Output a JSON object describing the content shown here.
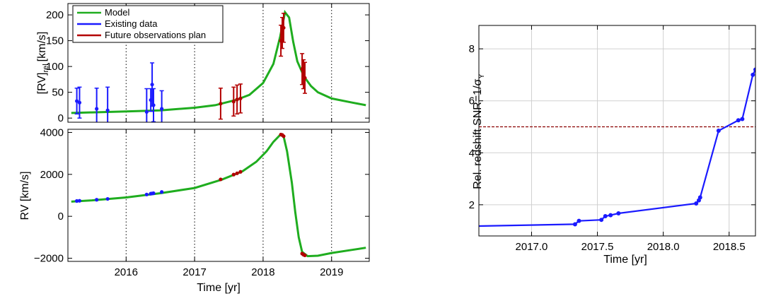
{
  "chart_data": [
    {
      "type": "line",
      "title": "",
      "xlabel": "",
      "ylabel": "[RV]rel [km/s]",
      "ylabel_main": "[RV]",
      "ylabel_sub": "rel",
      "ylabel_unit": "[km/s]",
      "xlim": [
        2015.15,
        2019.55
      ],
      "ylim": [
        -8,
        222
      ],
      "yticks": [
        0,
        50,
        100,
        150,
        200
      ],
      "ytick_labels": [
        "0",
        "50",
        "100",
        "150",
        "200"
      ],
      "xticks": [
        2016,
        2017,
        2018,
        2019
      ],
      "vlines": [
        2016,
        2017,
        2018,
        2019
      ],
      "legend": {
        "position": "top-left",
        "entries": [
          {
            "label": "Model",
            "color": "#1fad1f"
          },
          {
            "label": "Existing data",
            "color": "#1a1aff"
          },
          {
            "label": "Future observations plan",
            "color": "#b30000"
          }
        ]
      },
      "series": [
        {
          "name": "Model",
          "color": "#1fad1f",
          "x": [
            2015.2,
            2015.5,
            2016.0,
            2016.5,
            2017.0,
            2017.3,
            2017.6,
            2017.8,
            2018.0,
            2018.15,
            2018.25,
            2018.32,
            2018.38,
            2018.44,
            2018.5,
            2018.6,
            2018.7,
            2018.8,
            2019.0,
            2019.3,
            2019.5
          ],
          "y": [
            10,
            11,
            13,
            15,
            20,
            25,
            35,
            45,
            68,
            105,
            158,
            205,
            195,
            148,
            110,
            80,
            62,
            50,
            38,
            30,
            25
          ]
        },
        {
          "name": "Existing data",
          "color": "#1a1aff",
          "points": [
            {
              "x": 2015.28,
              "y": 33,
              "err": 25
            },
            {
              "x": 2015.32,
              "y": 30,
              "err": 30
            },
            {
              "x": 2015.57,
              "y": 18,
              "err": 40
            },
            {
              "x": 2015.73,
              "y": 15,
              "err": 45
            },
            {
              "x": 2016.3,
              "y": 12,
              "err": 45
            },
            {
              "x": 2016.36,
              "y": 35,
              "err": 22
            },
            {
              "x": 2016.38,
              "y": 65,
              "err": 42
            },
            {
              "x": 2016.4,
              "y": 25,
              "err": 32
            },
            {
              "x": 2016.52,
              "y": 18,
              "err": 35
            }
          ]
        },
        {
          "name": "Future observations plan",
          "color": "#b30000",
          "points": [
            {
              "x": 2017.38,
              "y": 28,
              "err": 30
            },
            {
              "x": 2017.57,
              "y": 32,
              "err": 28
            },
            {
              "x": 2017.62,
              "y": 36,
              "err": 28
            },
            {
              "x": 2017.67,
              "y": 38,
              "err": 28
            },
            {
              "x": 2018.26,
              "y": 150,
              "err": 30
            },
            {
              "x": 2018.28,
              "y": 165,
              "err": 30
            },
            {
              "x": 2018.3,
              "y": 175,
              "err": 28
            },
            {
              "x": 2018.57,
              "y": 95,
              "err": 30
            },
            {
              "x": 2018.59,
              "y": 85,
              "err": 28
            },
            {
              "x": 2018.61,
              "y": 78,
              "err": 30
            }
          ]
        }
      ]
    },
    {
      "type": "line",
      "title": "",
      "xlabel": "Time [yr]",
      "ylabel": "RV [km/s]",
      "xlim": [
        2015.15,
        2019.55
      ],
      "ylim": [
        -2150,
        4150
      ],
      "yticks": [
        -2000,
        0,
        2000,
        4000
      ],
      "ytick_labels": [
        "−2000",
        "0",
        "2000",
        "4000"
      ],
      "xticks": [
        2016,
        2017,
        2018,
        2019
      ],
      "xtick_labels": [
        "2016",
        "2017",
        "2018",
        "2019"
      ],
      "vlines": [
        2016,
        2017,
        2018,
        2019
      ],
      "series": [
        {
          "name": "Model",
          "color": "#1fad1f",
          "x": [
            2015.2,
            2015.5,
            2016.0,
            2016.5,
            2017.0,
            2017.4,
            2017.7,
            2017.9,
            2018.05,
            2018.15,
            2018.25,
            2018.3,
            2018.35,
            2018.42,
            2018.47,
            2018.52,
            2018.57,
            2018.65,
            2018.8,
            2019.0,
            2019.3,
            2019.5
          ],
          "y": [
            700,
            760,
            900,
            1100,
            1350,
            1750,
            2150,
            2600,
            3100,
            3550,
            3880,
            3800,
            3100,
            1600,
            200,
            -1000,
            -1700,
            -1900,
            -1880,
            -1750,
            -1600,
            -1500
          ]
        },
        {
          "name": "Existing data",
          "color": "#1a1aff",
          "points": [
            {
              "x": 2015.28,
              "y": 730
            },
            {
              "x": 2015.32,
              "y": 740
            },
            {
              "x": 2015.57,
              "y": 790
            },
            {
              "x": 2015.73,
              "y": 830
            },
            {
              "x": 2016.3,
              "y": 1040
            },
            {
              "x": 2016.36,
              "y": 1080
            },
            {
              "x": 2016.38,
              "y": 1090
            },
            {
              "x": 2016.4,
              "y": 1100
            },
            {
              "x": 2016.52,
              "y": 1160
            }
          ]
        },
        {
          "name": "Future observations plan",
          "color": "#b30000",
          "points": [
            {
              "x": 2017.38,
              "y": 1760
            },
            {
              "x": 2017.57,
              "y": 1990
            },
            {
              "x": 2017.62,
              "y": 2050
            },
            {
              "x": 2017.67,
              "y": 2120
            },
            {
              "x": 2018.26,
              "y": 3900
            },
            {
              "x": 2018.28,
              "y": 3880
            },
            {
              "x": 2018.3,
              "y": 3820
            },
            {
              "x": 2018.57,
              "y": -1780
            },
            {
              "x": 2018.59,
              "y": -1830
            },
            {
              "x": 2018.61,
              "y": -1860
            }
          ]
        }
      ]
    },
    {
      "type": "line",
      "title": "",
      "xlabel": "Time [yr]",
      "ylabel": "Rel. redshift SNR=1/σY",
      "ylabel_main": "Rel. redshift SNR=1/σ",
      "ylabel_sub": "Y",
      "xlim": [
        2016.6,
        2018.7
      ],
      "ylim": [
        0.8,
        8.9
      ],
      "yticks": [
        2,
        4,
        6,
        8
      ],
      "ytick_labels": [
        "2",
        "4",
        "6",
        "8"
      ],
      "xticks": [
        2017.0,
        2017.5,
        2018.0,
        2018.5
      ],
      "xtick_labels": [
        "2017.0",
        "2017.5",
        "2018.0",
        "2018.5"
      ],
      "grid": true,
      "hline": {
        "y": 5.0,
        "color": "#8b0000",
        "style": "dashed"
      },
      "series": [
        {
          "name": "",
          "color": "#1a1aff",
          "points": [
            {
              "x": 2016.6,
              "y": 1.18
            },
            {
              "x": 2017.33,
              "y": 1.25
            },
            {
              "x": 2017.36,
              "y": 1.38
            },
            {
              "x": 2017.53,
              "y": 1.42
            },
            {
              "x": 2017.56,
              "y": 1.56
            },
            {
              "x": 2017.6,
              "y": 1.6
            },
            {
              "x": 2017.66,
              "y": 1.67
            },
            {
              "x": 2018.25,
              "y": 2.05
            },
            {
              "x": 2018.27,
              "y": 2.17
            },
            {
              "x": 2018.28,
              "y": 2.28
            },
            {
              "x": 2018.42,
              "y": 4.85
            },
            {
              "x": 2018.57,
              "y": 5.25
            },
            {
              "x": 2018.6,
              "y": 5.3
            },
            {
              "x": 2018.68,
              "y": 7.0
            },
            {
              "x": 2018.7,
              "y": 7.2
            }
          ]
        }
      ]
    }
  ]
}
